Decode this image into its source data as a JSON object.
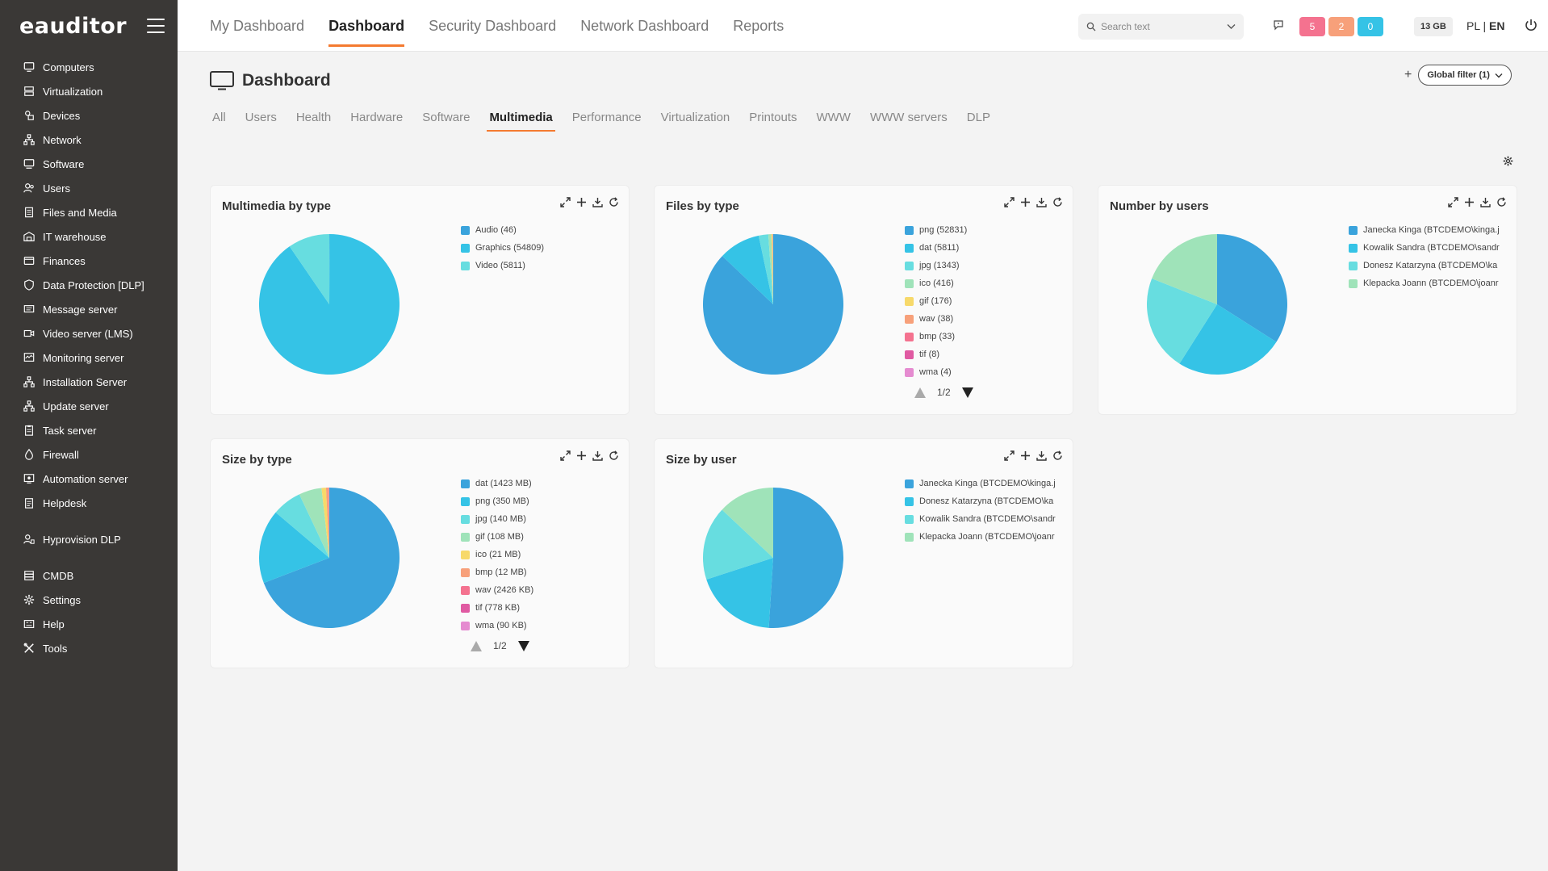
{
  "app": {
    "logo": "eauditor"
  },
  "sidebar": {
    "items": [
      {
        "label": "Computers",
        "icon": "monitor-icon"
      },
      {
        "label": "Virtualization",
        "icon": "server-icon"
      },
      {
        "label": "Devices",
        "icon": "devices-icon"
      },
      {
        "label": "Network",
        "icon": "network-icon"
      },
      {
        "label": "Software",
        "icon": "software-icon"
      },
      {
        "label": "Users",
        "icon": "users-icon"
      },
      {
        "label": "Files and Media",
        "icon": "files-icon"
      },
      {
        "label": "IT warehouse",
        "icon": "warehouse-icon"
      },
      {
        "label": "Finances",
        "icon": "finances-icon"
      },
      {
        "label": "Data Protection [DLP]",
        "icon": "shield-icon"
      },
      {
        "label": "Message server",
        "icon": "message-icon"
      },
      {
        "label": "Video server (LMS)",
        "icon": "video-icon"
      },
      {
        "label": "Monitoring server",
        "icon": "monitoring-icon"
      },
      {
        "label": "Installation Server",
        "icon": "install-icon"
      },
      {
        "label": "Update server",
        "icon": "update-icon"
      },
      {
        "label": "Task server",
        "icon": "task-icon"
      },
      {
        "label": "Firewall",
        "icon": "firewall-icon"
      },
      {
        "label": "Automation server",
        "icon": "automation-icon"
      },
      {
        "label": "Helpdesk",
        "icon": "helpdesk-icon"
      },
      {
        "label": "Hyprovision DLP",
        "icon": "dlp-user-icon"
      },
      {
        "label": "CMDB",
        "icon": "database-icon"
      },
      {
        "label": "Settings",
        "icon": "gear-icon"
      },
      {
        "label": "Help",
        "icon": "help-icon"
      },
      {
        "label": "Tools",
        "icon": "tools-icon"
      }
    ]
  },
  "topbar": {
    "tabs": [
      "My Dashboard",
      "Dashboard",
      "Security Dashboard",
      "Network Dashboard",
      "Reports"
    ],
    "active_tab": "Dashboard",
    "search_placeholder": "Search text",
    "badges": [
      {
        "value": "5",
        "color": "#f4728f"
      },
      {
        "value": "2",
        "color": "#f7a07a"
      },
      {
        "value": "0",
        "color": "#35c3e6"
      }
    ],
    "storage": "13 GB",
    "lang_pl": "PL",
    "lang_sep": "|",
    "lang_en": "EN"
  },
  "page": {
    "title": "Dashboard",
    "global_filter": "Global filter (1)",
    "sub_tabs": [
      "All",
      "Users",
      "Health",
      "Hardware",
      "Software",
      "Multimedia",
      "Performance",
      "Virtualization",
      "Printouts",
      "WWW",
      "WWW servers",
      "DLP"
    ],
    "active_sub_tab": "Multimedia"
  },
  "colors": {
    "accent": "#f47a30",
    "sidebar_bg": "#3a3836"
  },
  "chart_data": [
    {
      "type": "pie",
      "title": "Multimedia by type",
      "slices": [
        {
          "label": "Audio (46)",
          "value": 46,
          "color": "#3aa3dc"
        },
        {
          "label": "Graphics (54809)",
          "value": 54809,
          "color": "#35c3e6"
        },
        {
          "label": "Video (5811)",
          "value": 5811,
          "color": "#67dde0"
        }
      ]
    },
    {
      "type": "pie",
      "title": "Files by type",
      "slices": [
        {
          "label": "png (52831)",
          "value": 52831,
          "color": "#3aa3dc"
        },
        {
          "label": "dat (5811)",
          "value": 5811,
          "color": "#35c3e6"
        },
        {
          "label": "jpg (1343)",
          "value": 1343,
          "color": "#67dde0"
        },
        {
          "label": "ico (416)",
          "value": 416,
          "color": "#9fe3b9"
        },
        {
          "label": "gif (176)",
          "value": 176,
          "color": "#f7d96a"
        },
        {
          "label": "wav (38)",
          "value": 38,
          "color": "#f7a07a"
        },
        {
          "label": "bmp (33)",
          "value": 33,
          "color": "#f4728f"
        },
        {
          "label": "tif (8)",
          "value": 8,
          "color": "#e05aa2"
        },
        {
          "label": "wma (4)",
          "value": 4,
          "color": "#e58bd0"
        }
      ],
      "pager": "1/2"
    },
    {
      "type": "pie",
      "title": "Number by users",
      "slices": [
        {
          "label": "Janecka Kinga (BTCDEMO\\kinga.j",
          "value": 34,
          "color": "#3aa3dc"
        },
        {
          "label": "Kowalik Sandra (BTCDEMO\\sandr",
          "value": 25,
          "color": "#35c3e6"
        },
        {
          "label": "Donesz Katarzyna (BTCDEMO\\ka",
          "value": 22,
          "color": "#67dde0"
        },
        {
          "label": "Klepacka Joann (BTCDEMO\\joanr",
          "value": 19,
          "color": "#9fe3b9"
        }
      ]
    },
    {
      "type": "pie",
      "title": "Size by type",
      "slices": [
        {
          "label": "dat (1423 MB)",
          "value": 1423,
          "color": "#3aa3dc"
        },
        {
          "label": "png (350 MB)",
          "value": 350,
          "color": "#35c3e6"
        },
        {
          "label": "jpg (140 MB)",
          "value": 140,
          "color": "#67dde0"
        },
        {
          "label": "gif (108 MB)",
          "value": 108,
          "color": "#9fe3b9"
        },
        {
          "label": "ico (21 MB)",
          "value": 21,
          "color": "#f7d96a"
        },
        {
          "label": "bmp (12 MB)",
          "value": 12,
          "color": "#f7a07a"
        },
        {
          "label": "wav (2426 KB)",
          "value": 2.4,
          "color": "#f4728f"
        },
        {
          "label": "tif (778 KB)",
          "value": 0.8,
          "color": "#e05aa2"
        },
        {
          "label": "wma (90 KB)",
          "value": 0.1,
          "color": "#e58bd0"
        }
      ],
      "pager": "1/2"
    },
    {
      "type": "pie",
      "title": "Size by user",
      "slices": [
        {
          "label": "Janecka Kinga (BTCDEMO\\kinga.j",
          "value": 51,
          "color": "#3aa3dc"
        },
        {
          "label": "Donesz Katarzyna (BTCDEMO\\ka",
          "value": 19,
          "color": "#35c3e6"
        },
        {
          "label": "Kowalik Sandra (BTCDEMO\\sandr",
          "value": 17,
          "color": "#67dde0"
        },
        {
          "label": "Klepacka Joann (BTCDEMO\\joanr",
          "value": 13,
          "color": "#9fe3b9"
        }
      ]
    }
  ]
}
